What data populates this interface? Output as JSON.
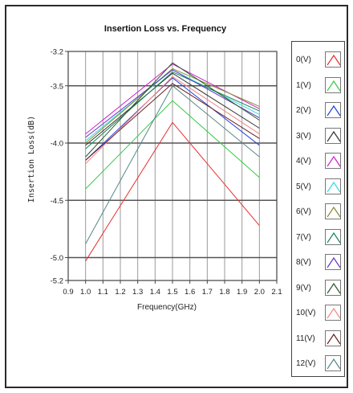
{
  "chart_data": {
    "type": "line",
    "title": "Insertion Loss vs. Frequency",
    "xlabel": "Frequency(GHz)",
    "ylabel": "Insertion Loss(dB)",
    "xlim": [
      0.9,
      2.1
    ],
    "ylim": [
      -5.2,
      -3.2
    ],
    "x_ticks": [
      "0.9",
      "1.0",
      "1.1",
      "1.2",
      "1.3",
      "1.4",
      "1.5",
      "1.6",
      "1.7",
      "1.8",
      "1.9",
      "2.0",
      "2.1"
    ],
    "y_ticks": [
      "-3.2",
      "-3.5",
      "-4.0",
      "-4.5",
      "-5.0",
      "-5.2"
    ],
    "y_tick_values": [
      -3.2,
      -3.5,
      -4.0,
      -4.5,
      -5.0,
      -5.2
    ],
    "grid": true,
    "legend_position": "right",
    "x": [
      1.0,
      1.5,
      2.0
    ],
    "series": [
      {
        "name": "0(V)",
        "color": "#e83030",
        "values": [
          -5.03,
          -3.82,
          -4.72
        ]
      },
      {
        "name": "1(V)",
        "color": "#33cc44",
        "values": [
          -4.4,
          -3.63,
          -4.3
        ]
      },
      {
        "name": "2(V)",
        "color": "#2244dd",
        "values": [
          -4.15,
          -3.43,
          -4.02
        ]
      },
      {
        "name": "3(V)",
        "color": "#333333",
        "values": [
          -4.02,
          -3.39,
          -3.87
        ]
      },
      {
        "name": "4(V)",
        "color": "#cc22cc",
        "values": [
          -3.92,
          -3.31,
          -3.7
        ]
      },
      {
        "name": "5(V)",
        "color": "#33dddd",
        "values": [
          -3.98,
          -3.36,
          -3.75
        ]
      },
      {
        "name": "6(V)",
        "color": "#8a8a30",
        "values": [
          -4.0,
          -3.35,
          -3.68
        ]
      },
      {
        "name": "7(V)",
        "color": "#118855",
        "values": [
          -4.05,
          -3.38,
          -3.72
        ]
      },
      {
        "name": "8(V)",
        "color": "#6633cc",
        "values": [
          -3.95,
          -3.36,
          -3.78
        ]
      },
      {
        "name": "9(V)",
        "color": "#2a5a2a",
        "values": [
          -4.12,
          -3.3,
          -3.8
        ]
      },
      {
        "name": "10(V)",
        "color": "#f08888",
        "values": [
          -4.18,
          -3.42,
          -3.92
        ]
      },
      {
        "name": "11(V)",
        "color": "#662222",
        "values": [
          -4.15,
          -3.48,
          -3.96
        ]
      },
      {
        "name": "12(V)",
        "color": "#558888",
        "values": [
          -4.88,
          -3.5,
          -4.12
        ]
      }
    ]
  }
}
